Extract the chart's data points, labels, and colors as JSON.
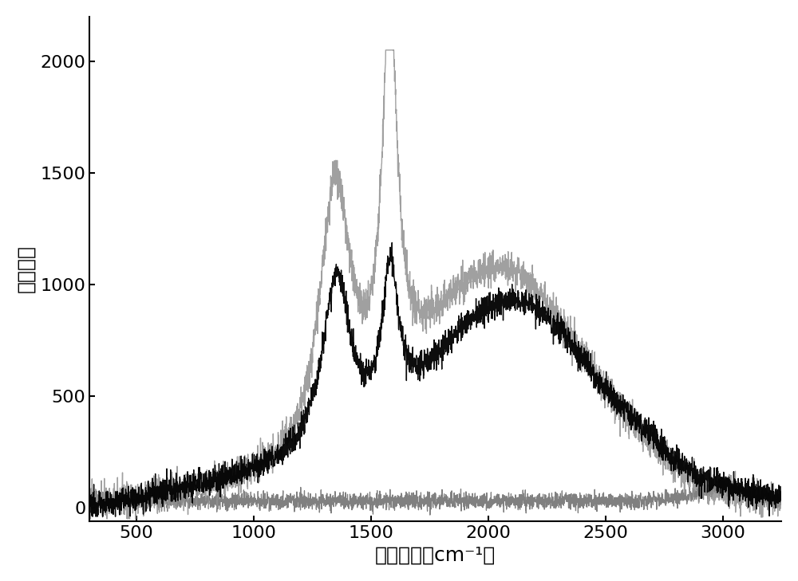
{
  "x_min": 300,
  "x_max": 3250,
  "y_min": -60,
  "y_max": 2200,
  "xlabel": "拉曼位移（cm⁻¹）",
  "ylabel": "拉曼强度",
  "xticks": [
    500,
    1000,
    1500,
    2000,
    2500,
    3000
  ],
  "yticks": [
    0,
    500,
    1000,
    1500,
    2000
  ],
  "background_color": "#ffffff",
  "line_black_color": "#000000",
  "line_gray_color": "#909090",
  "line_flat_color": "#606060",
  "xlabel_fontsize": 18,
  "ylabel_fontsize": 18,
  "tick_fontsize": 16
}
